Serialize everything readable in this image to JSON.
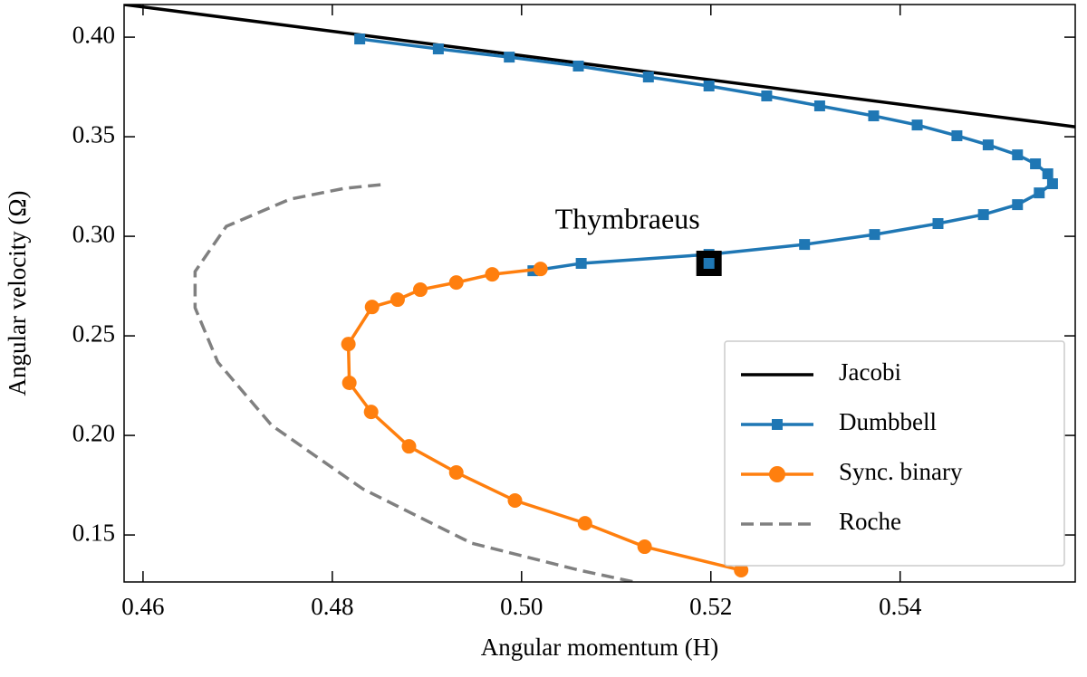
{
  "chart_data": {
    "type": "line",
    "x_label": "Angular momentum (H)",
    "y_label": "Angular velocity (Ω)",
    "xlim": [
      0.458,
      0.5585
    ],
    "ylim": [
      0.1264,
      0.4164
    ],
    "xticks": [
      {
        "value": 0.46,
        "label": "0.46"
      },
      {
        "value": 0.48,
        "label": "0.48"
      },
      {
        "value": 0.5,
        "label": "0.50"
      },
      {
        "value": 0.52,
        "label": "0.52"
      },
      {
        "value": 0.54,
        "label": "0.54"
      }
    ],
    "yticks": [
      {
        "value": 0.15,
        "label": "0.15"
      },
      {
        "value": 0.2,
        "label": "0.20"
      },
      {
        "value": 0.25,
        "label": "0.25"
      },
      {
        "value": 0.3,
        "label": "0.30"
      },
      {
        "value": 0.35,
        "label": "0.35"
      },
      {
        "value": 0.4,
        "label": "0.40"
      }
    ],
    "legend": "lower right",
    "series": [
      {
        "name": "Jacobi",
        "color": "#000000",
        "marker": "none",
        "dash": false,
        "x": [
          0.458,
          0.5585
        ],
        "values": [
          0.4164,
          0.355
        ]
      },
      {
        "name": "Dumbbell",
        "color": "#1f77b4",
        "marker": "square",
        "dash": false,
        "x": [
          0.4829,
          0.4912,
          0.4987,
          0.506,
          0.5134,
          0.5198,
          0.5259,
          0.5315,
          0.5372,
          0.5418,
          0.546,
          0.5493,
          0.5524,
          0.5543,
          0.5556,
          0.5561,
          0.5547,
          0.5524,
          0.5488,
          0.544,
          0.5373,
          0.5299,
          0.5198,
          0.5063,
          0.5012
        ],
        "values": [
          0.3991,
          0.3941,
          0.39,
          0.3855,
          0.38,
          0.3755,
          0.3705,
          0.3655,
          0.3605,
          0.3559,
          0.3505,
          0.3459,
          0.3409,
          0.3364,
          0.3314,
          0.3264,
          0.3218,
          0.3159,
          0.3109,
          0.3064,
          0.3009,
          0.2959,
          0.2909,
          0.2864,
          0.2827
        ]
      },
      {
        "name": "Sync. binary",
        "color": "#ff7f0e",
        "marker": "circle",
        "dash": false,
        "x": [
          0.502,
          0.4969,
          0.4931,
          0.4893,
          0.4869,
          0.4842,
          0.4817,
          0.4818,
          0.4841,
          0.4881,
          0.4931,
          0.4993,
          0.5067,
          0.513,
          0.5232
        ],
        "values": [
          0.2836,
          0.2809,
          0.2768,
          0.2732,
          0.2682,
          0.2645,
          0.2459,
          0.2264,
          0.2118,
          0.1945,
          0.1814,
          0.1673,
          0.1559,
          0.1441,
          0.1323
        ]
      },
      {
        "name": "Roche",
        "color": "#808080",
        "marker": "none",
        "dash": true,
        "x": [
          0.4851,
          0.4813,
          0.4755,
          0.4688,
          0.4655,
          0.4655,
          0.4679,
          0.4736,
          0.4832,
          0.4947,
          0.5061,
          0.5119
        ],
        "values": [
          0.3259,
          0.3241,
          0.3186,
          0.305,
          0.2823,
          0.2641,
          0.2368,
          0.205,
          0.1732,
          0.1459,
          0.1323,
          0.1264
        ]
      }
    ],
    "annotations": [
      {
        "text": "Thymbraeus",
        "x": 0.5198,
        "y": 0.2864
      }
    ]
  }
}
